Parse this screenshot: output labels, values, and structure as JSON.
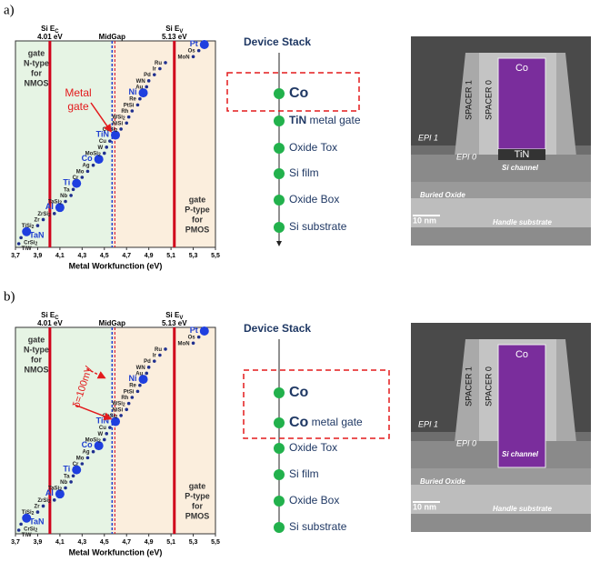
{
  "chart_data": [
    {
      "type": "scatter",
      "xlabel": "Metal Workfunction (eV)",
      "ec": {
        "value": 4.01,
        "label": "4.01 eV",
        "name": "Si E",
        "sub": "C"
      },
      "ev": {
        "value": 5.13,
        "label": "5.13 eV",
        "name": "Si E",
        "sub": "V"
      },
      "midgap": {
        "value": 4.57,
        "label": "MidGap"
      },
      "left_text": [
        "gate",
        "N-type",
        "for",
        "NMOS"
      ],
      "right_text": [
        "gate",
        "P-type",
        "for",
        "PMOS"
      ],
      "annotation": [
        "Metal",
        "gate"
      ],
      "labels": [
        "TiW",
        "CrSi2",
        "TaN",
        "TiSi2",
        "Zr",
        "ZrSi2",
        "Al",
        "TaSi2",
        "Nb",
        "Ta",
        "Ti",
        "Cr",
        "Mo",
        "Ag",
        "Co",
        "MoSi2",
        "W",
        "Cu",
        "TiN",
        "CoSi2",
        "NiSi",
        "WSi2",
        "Rh",
        "PtSi",
        "Re",
        "Ni",
        "Au",
        "WN",
        "Pd",
        "Ir",
        "Ru",
        "MoN",
        "Os",
        "Pt"
      ],
      "x": [
        3.73,
        3.75,
        3.8,
        3.9,
        3.95,
        4.05,
        4.1,
        4.15,
        4.2,
        4.22,
        4.25,
        4.3,
        4.35,
        4.4,
        4.45,
        4.5,
        4.52,
        4.55,
        4.6,
        4.65,
        4.7,
        4.72,
        4.75,
        4.8,
        4.82,
        4.85,
        4.88,
        4.9,
        4.95,
        5.0,
        5.05,
        5.3,
        5.35,
        5.4
      ],
      "big": [
        false,
        false,
        true,
        false,
        false,
        false,
        true,
        false,
        false,
        false,
        true,
        false,
        false,
        false,
        true,
        false,
        false,
        false,
        true,
        false,
        false,
        false,
        false,
        false,
        false,
        true,
        false,
        false,
        false,
        false,
        false,
        false,
        false,
        true
      ],
      "xlim": [
        3.7,
        5.5
      ],
      "xticks": [
        {
          "value": 3.7,
          "label": "3,7"
        },
        {
          "value": 3.9,
          "label": "3,9"
        },
        {
          "value": 4.1,
          "label": "4,1"
        },
        {
          "value": 4.3,
          "label": "4,3"
        },
        {
          "value": 4.5,
          "label": "4,5"
        },
        {
          "value": 4.7,
          "label": "4,7"
        },
        {
          "value": 4.9,
          "label": "4,9"
        },
        {
          "value": 5.1,
          "label": "5,1"
        },
        {
          "value": 5.3,
          "label": "5,3"
        },
        {
          "value": 5.5,
          "label": "5,5"
        }
      ]
    },
    {
      "type": "scatter",
      "xlabel": "Metal Workfunction (eV)",
      "ec": {
        "value": 4.01,
        "label": "4.01 eV",
        "name": "Si E",
        "sub": "C"
      },
      "ev": {
        "value": 5.13,
        "label": "5.13 eV",
        "name": "Si E",
        "sub": "V"
      },
      "midgap": {
        "value": 4.57,
        "label": "MidGap"
      },
      "left_text": [
        "gate",
        "N-type",
        "for",
        "NMOS"
      ],
      "right_text": [
        "gate",
        "P-type",
        "for",
        "PMOS"
      ],
      "annotation": [
        "δ=100mV"
      ],
      "labels": [
        "TiW",
        "CrSi2",
        "TaN",
        "TiSi2",
        "Zr",
        "ZrSi2",
        "Al",
        "TaSi2",
        "Nb",
        "Ta",
        "Ti",
        "Cr",
        "Mo",
        "Ag",
        "Co",
        "MoSi2",
        "W",
        "Cu",
        "TiN",
        "CoSi2",
        "NiSi",
        "WSi2",
        "Rh",
        "PtSi",
        "Re",
        "Ni",
        "Au",
        "WN",
        "Pd",
        "Ir",
        "Ru",
        "MoN",
        "Os",
        "Pt"
      ],
      "x": [
        3.73,
        3.75,
        3.8,
        3.9,
        3.95,
        4.05,
        4.1,
        4.15,
        4.2,
        4.22,
        4.25,
        4.3,
        4.35,
        4.4,
        4.45,
        4.5,
        4.52,
        4.55,
        4.6,
        4.65,
        4.7,
        4.72,
        4.75,
        4.8,
        4.82,
        4.85,
        4.88,
        4.9,
        4.95,
        5.0,
        5.05,
        5.3,
        5.35,
        5.4
      ],
      "big": [
        false,
        false,
        true,
        false,
        false,
        false,
        true,
        false,
        false,
        false,
        true,
        false,
        false,
        false,
        true,
        false,
        false,
        false,
        true,
        false,
        false,
        false,
        false,
        false,
        false,
        true,
        false,
        false,
        false,
        false,
        false,
        false,
        false,
        true
      ],
      "xlim": [
        3.7,
        5.5
      ],
      "xticks": [
        {
          "value": 3.7,
          "label": "3,7"
        },
        {
          "value": 3.9,
          "label": "3,9"
        },
        {
          "value": 4.1,
          "label": "4,1"
        },
        {
          "value": 4.3,
          "label": "4,3"
        },
        {
          "value": 4.5,
          "label": "4,5"
        },
        {
          "value": 4.7,
          "label": "4,7"
        },
        {
          "value": 4.9,
          "label": "4,9"
        },
        {
          "value": 5.1,
          "label": "5,1"
        },
        {
          "value": 5.3,
          "label": "5,3"
        },
        {
          "value": 5.5,
          "label": "5,5"
        }
      ]
    }
  ],
  "panels": [
    {
      "label": "a)",
      "stack": {
        "title": "Device Stack",
        "layers": [
          {
            "bold": "Co",
            "rest": ""
          },
          {
            "bold": "TiN",
            "rest": "metal gate"
          },
          {
            "bold": "",
            "rest": "Oxide Tox"
          },
          {
            "bold": "",
            "rest": "Si film"
          },
          {
            "bold": "",
            "rest": "Oxide Box"
          },
          {
            "bold": "",
            "rest": "Si substrate"
          }
        ]
      },
      "tem": {
        "gate": "Co",
        "liner": "TiN",
        "epi1": "EPI 1",
        "epi0": "EPI 0",
        "spacer1": "SPACER 1",
        "spacer0": "SPACER 0",
        "channel": "Si channel",
        "box": "Buried Oxide",
        "scale": "10 nm",
        "substrate": "Handle substrate"
      }
    },
    {
      "label": "b)",
      "stack": {
        "title": "Device Stack",
        "layers": [
          {
            "bold": "Co",
            "rest": ""
          },
          {
            "bold": "Co",
            "rest": "metal gate"
          },
          {
            "bold": "",
            "rest": "Oxide Tox"
          },
          {
            "bold": "",
            "rest": "Si film"
          },
          {
            "bold": "",
            "rest": "Oxide Box"
          },
          {
            "bold": "",
            "rest": "Si substrate"
          }
        ]
      },
      "tem": {
        "gate": "Co",
        "epi1": "EPI 1",
        "epi0": "EPI 0",
        "spacer1": "SPACER 1",
        "spacer0": "SPACER 0",
        "channel": "Si channel",
        "box": "Buried Oxide",
        "scale": "10 nm",
        "substrate": "Handle substrate"
      }
    }
  ]
}
